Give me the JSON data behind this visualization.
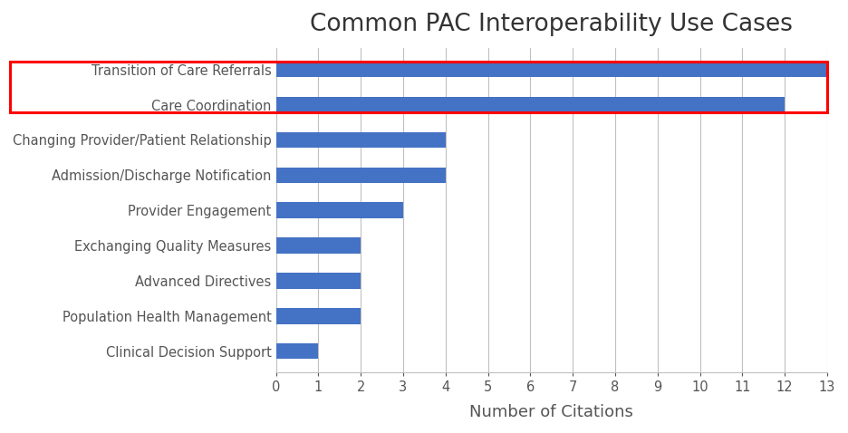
{
  "title": "Common PAC Interoperability Use Cases",
  "xlabel": "Number of Citations",
  "categories": [
    "Clinical Decision Support",
    "Population Health Management",
    "Advanced Directives",
    "Exchanging Quality Measures",
    "Provider Engagement",
    "Admission/Discharge Notification",
    "Changing Provider/Patient Relationship",
    "Care Coordination",
    "Transition of Care Referrals"
  ],
  "values": [
    1,
    2,
    2,
    2,
    3,
    4,
    4,
    12,
    13
  ],
  "bar_color": "#4472C4",
  "background_color": "#ffffff",
  "title_fontsize": 19,
  "label_fontsize": 10.5,
  "tick_fontsize": 10.5,
  "xlabel_fontsize": 13,
  "xlim": [
    0,
    13
  ],
  "xticks": [
    0,
    1,
    2,
    3,
    4,
    5,
    6,
    7,
    8,
    9,
    10,
    11,
    12,
    13
  ],
  "highlight_indices": [
    7,
    8
  ],
  "highlight_box_color": "red",
  "grid_color": "#c0c0c0",
  "bar_height": 0.45
}
